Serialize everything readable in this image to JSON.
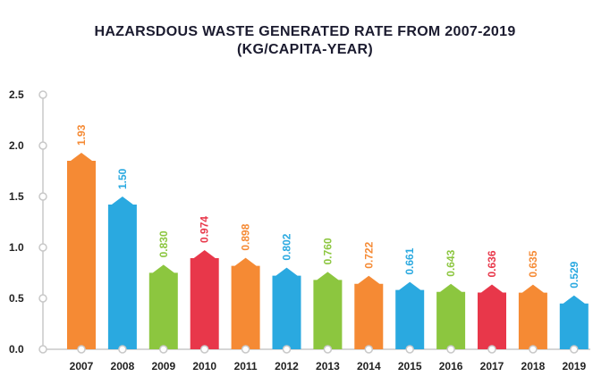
{
  "header": {
    "title_line1": "HAZARSDOUS WASTE GENERATED RATE FROM 2007-2019",
    "title_line2": "(KG/CAPITA-YEAR)"
  },
  "colors": {
    "orange": "#f58a34",
    "blue": "#2aa9e0",
    "green": "#8cc63f",
    "red": "#e8374a",
    "axis": "#c8c8c8",
    "text": "#222222"
  },
  "chart_data": {
    "type": "bar",
    "title": "HAZARSDOUS WASTE GENERATED RATE FROM 2007-2019 (KG/CAPITA-YEAR)",
    "xlabel": "",
    "ylabel": "",
    "ylim": [
      0,
      2.5
    ],
    "y_ticks": [
      "0.0",
      "0.5",
      "1.0",
      "1.5",
      "2.0",
      "2.5"
    ],
    "grid": false,
    "legend": "none",
    "categories": [
      "2007",
      "2008",
      "2009",
      "2010",
      "2011",
      "2012",
      "2013",
      "2014",
      "2015",
      "2016",
      "2017",
      "2018",
      "2019"
    ],
    "values": [
      1.93,
      1.5,
      0.83,
      0.974,
      0.898,
      0.802,
      0.76,
      0.722,
      0.661,
      0.643,
      0.636,
      0.635,
      0.529
    ],
    "value_labels": [
      "1.93",
      "1.50",
      "0.830",
      "0.974",
      "0.898",
      "0.802",
      "0.760",
      "0.722",
      "0.661",
      "0.643",
      "0.636",
      "0.635",
      "0.529"
    ],
    "bar_colors": [
      "orange",
      "blue",
      "green",
      "red",
      "orange",
      "blue",
      "green",
      "orange",
      "blue",
      "green",
      "red",
      "orange",
      "blue"
    ]
  }
}
